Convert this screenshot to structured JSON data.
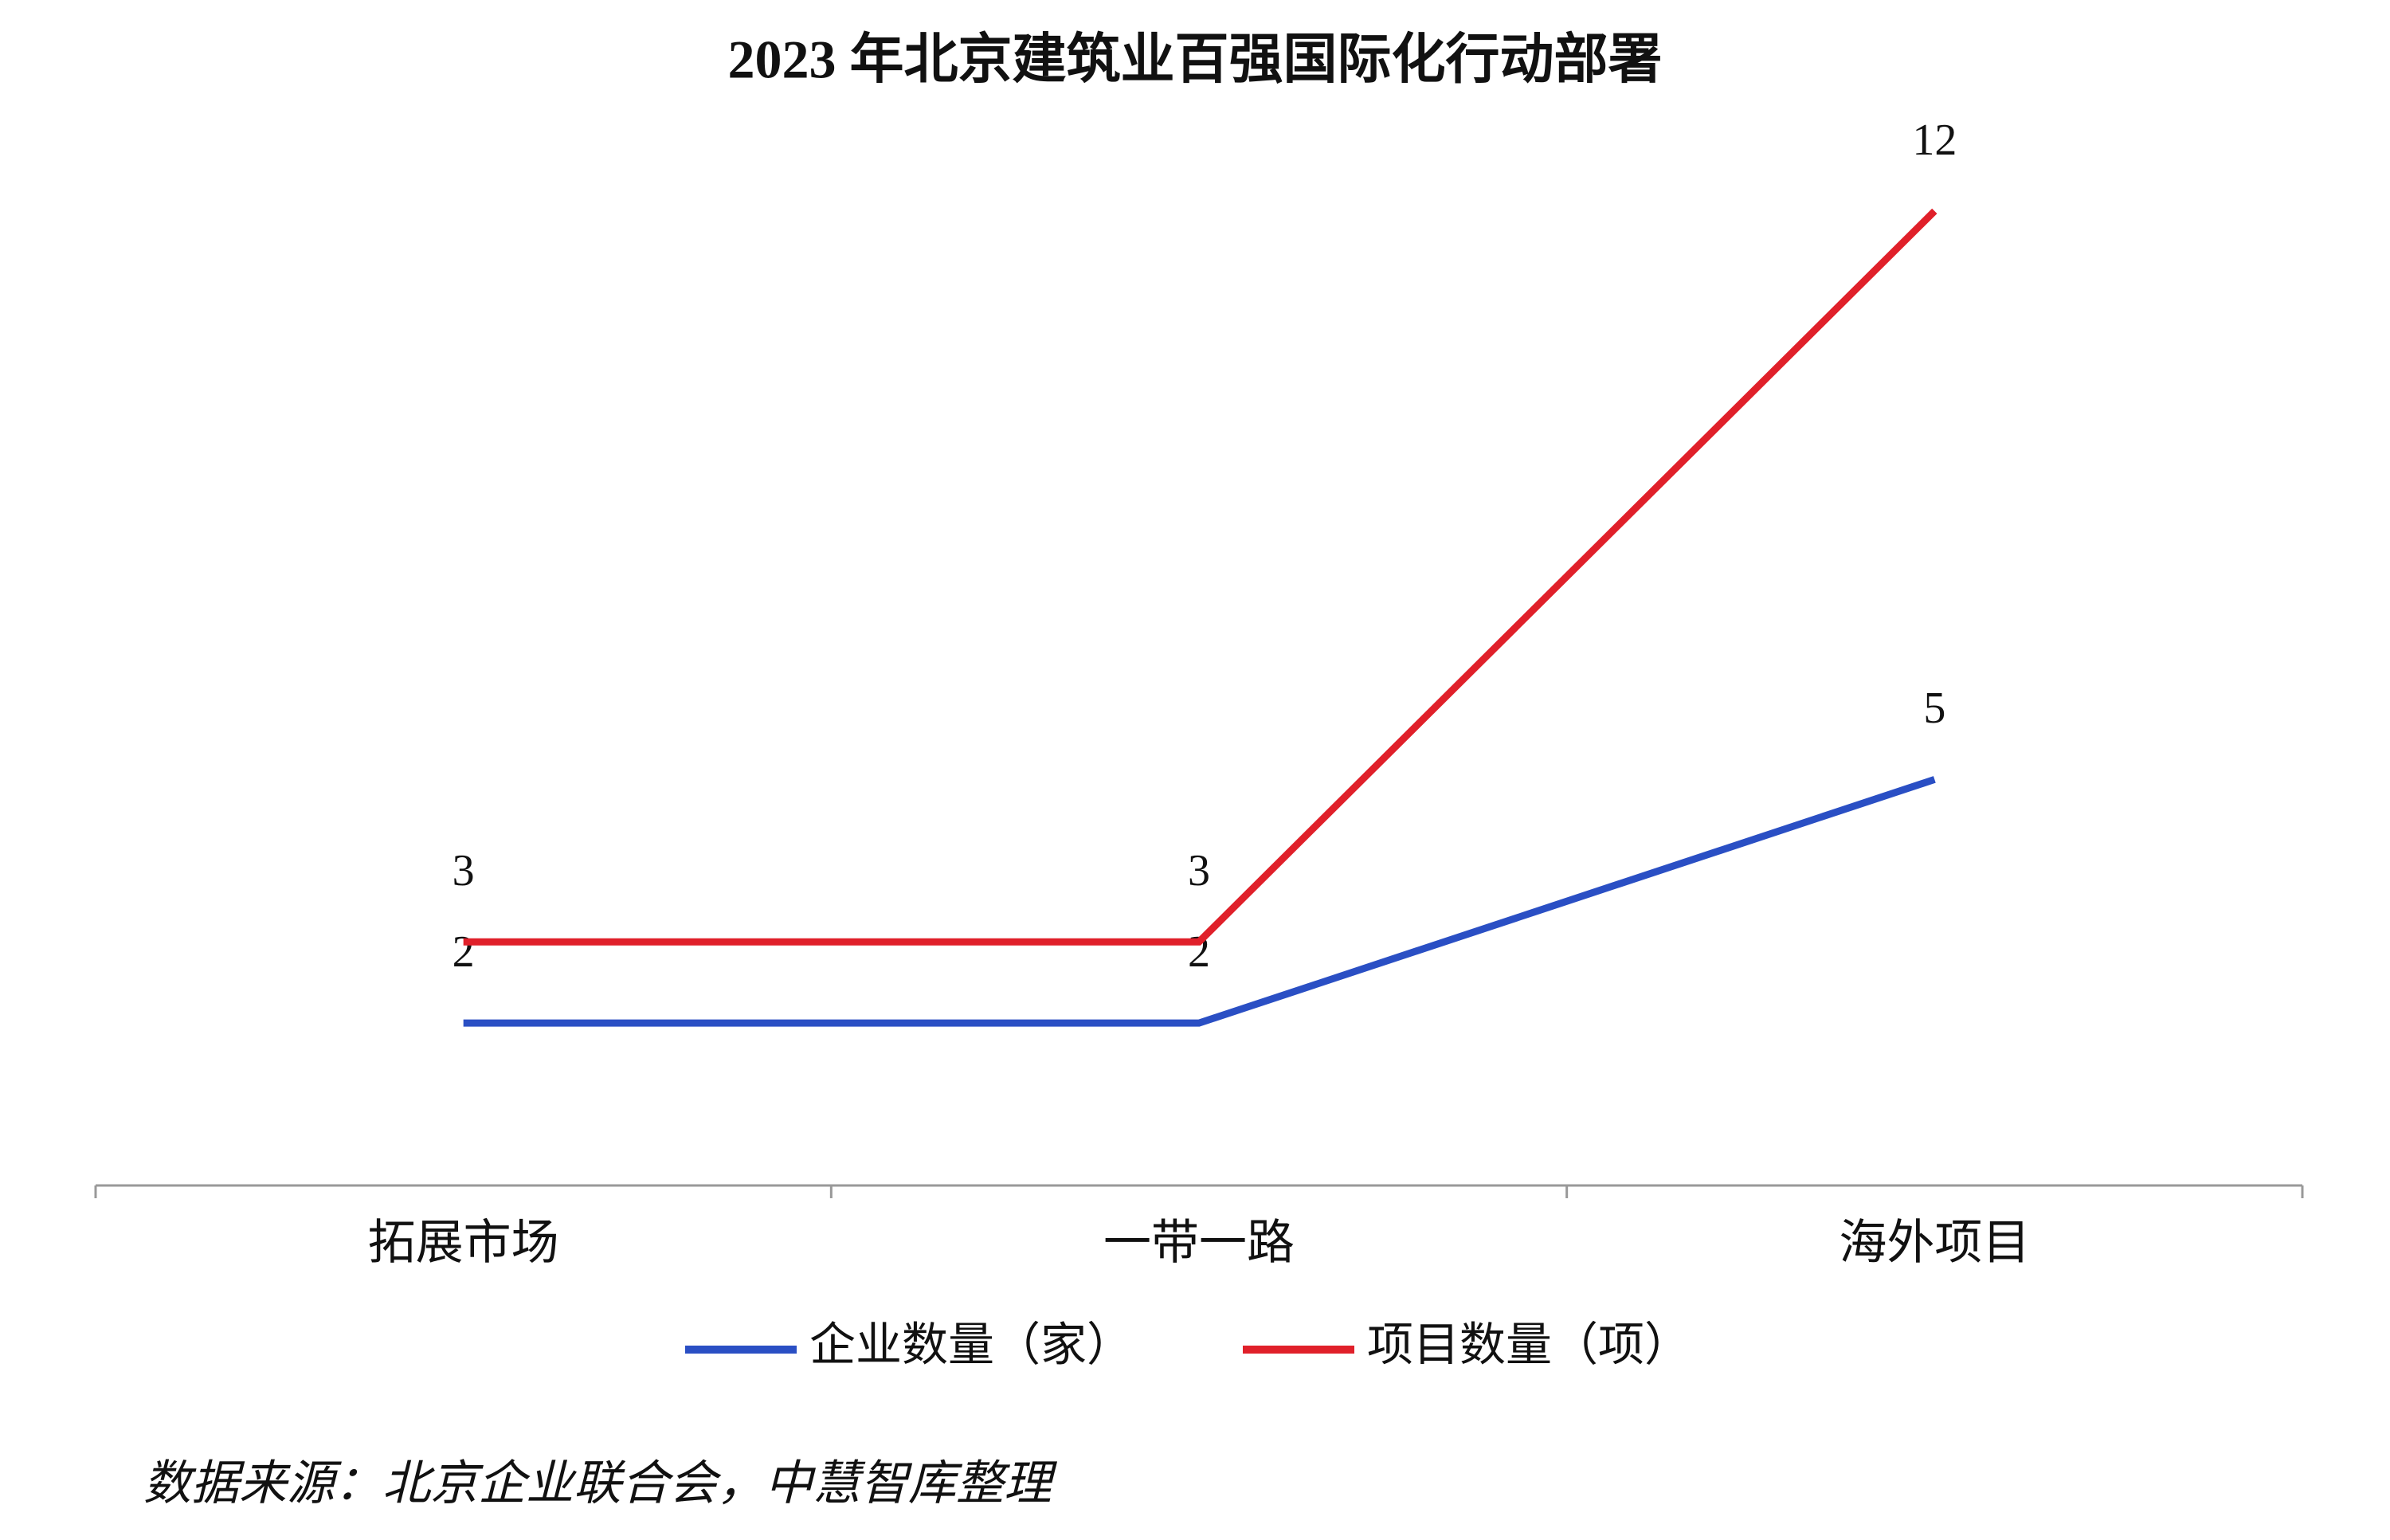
{
  "chart_data": {
    "type": "line",
    "title": "2023 年北京建筑业百强国际化行动部署",
    "categories": [
      "拓展市场",
      "一带一路",
      "海外项目"
    ],
    "series": [
      {
        "name": "企业数量（家）",
        "color": "#2a4fc4",
        "values": [
          2,
          2,
          5
        ]
      },
      {
        "name": "项目数量（项）",
        "color": "#e0202a",
        "values": [
          3,
          3,
          12
        ]
      }
    ],
    "ylim": [
      0,
      13
    ],
    "legend": "bottom",
    "note": "数据来源：北京企业联合会，中慧智库整理"
  }
}
